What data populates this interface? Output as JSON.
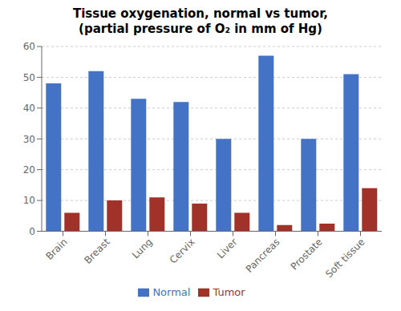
{
  "chart_data": {
    "type": "bar",
    "title": "Tissue oxygenation, normal vs tumor,\n(partial pressure of O₂ in mm of Hg)",
    "categories": [
      "Brain",
      "Breast",
      "Lung",
      "Cervix",
      "Liver",
      "Pancreas",
      "Prostate",
      "Soft tissue"
    ],
    "series": [
      {
        "name": "Normal",
        "color": "#4472C4",
        "values": [
          48,
          52,
          43,
          42,
          30,
          57,
          30,
          51
        ]
      },
      {
        "name": "Tumor",
        "color": "#A0322A",
        "values": [
          6,
          10,
          11,
          9,
          6,
          2,
          2.5,
          14
        ]
      }
    ],
    "ylim": [
      0,
      60
    ],
    "yticks": [
      0,
      10,
      20,
      30,
      40,
      50,
      60
    ],
    "grid": true,
    "legend": "bottom"
  }
}
